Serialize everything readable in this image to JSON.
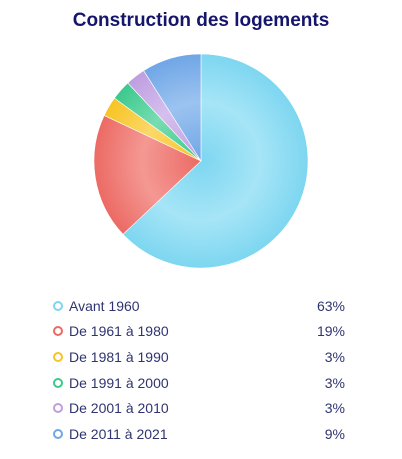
{
  "chart_data": {
    "type": "pie",
    "title": "Construction des logements",
    "slices": [
      {
        "label": "Avant 1960",
        "value": 63,
        "display": "63%",
        "color": "#7dd6f0",
        "highlight": "#a6e5f7"
      },
      {
        "label": "De 1961 à 1980",
        "value": 19,
        "display": "19%",
        "color": "#ec6a64",
        "highlight": "#f49893"
      },
      {
        "label": "De 1981 à 1990",
        "value": 3,
        "display": "3%",
        "color": "#f7c424",
        "highlight": "#fbd869"
      },
      {
        "label": "De 1991 à 2000",
        "value": 3,
        "display": "3%",
        "color": "#3cc98d",
        "highlight": "#78dcb1"
      },
      {
        "label": "De 2001 à 2010",
        "value": 3,
        "display": "3%",
        "color": "#bf9ee0",
        "highlight": "#d6bfee"
      },
      {
        "label": "De 2011 à 2021",
        "value": 9,
        "display": "9%",
        "color": "#6fa6e6",
        "highlight": "#9cc3f0"
      }
    ],
    "start_direction": "top",
    "direction": "clockwise",
    "legend_position": "bottom"
  }
}
